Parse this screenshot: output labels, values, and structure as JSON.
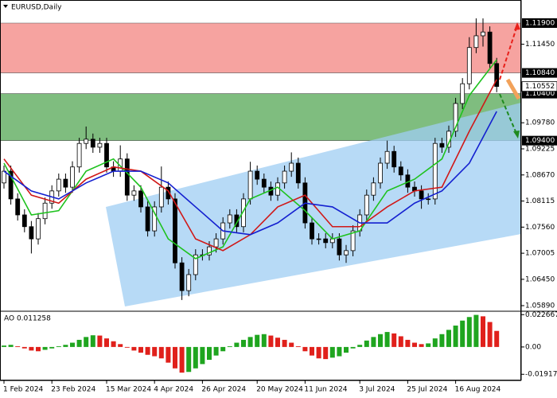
{
  "chart_data": {
    "type": "candlestick",
    "title": "EURUSD,Daily",
    "categories": [
      "1 Feb 2024",
      null,
      null,
      null,
      null,
      null,
      null,
      "23 Feb 2024",
      null,
      null,
      null,
      null,
      null,
      null,
      null,
      "15 Mar 2024",
      null,
      null,
      null,
      null,
      null,
      null,
      "4 Apr 2024",
      null,
      null,
      null,
      null,
      null,
      null,
      "26 Apr 2024",
      null,
      null,
      null,
      null,
      null,
      null,
      null,
      "20 May 2024",
      null,
      null,
      null,
      null,
      null,
      null,
      "11 Jun 2024",
      null,
      null,
      null,
      null,
      null,
      null,
      null,
      "3 Jul 2024",
      null,
      null,
      null,
      null,
      null,
      null,
      "25 Jul 2024",
      null,
      null,
      null,
      null,
      null,
      null,
      "16 Aug 2024",
      null,
      null,
      null,
      null,
      null,
      null
    ],
    "open": [
      1.085,
      1.0875,
      1.0816,
      1.0782,
      1.0757,
      1.0731,
      1.0774,
      1.0807,
      1.0833,
      1.0858,
      1.0841,
      1.0884,
      1.0934,
      1.0943,
      1.0926,
      1.0934,
      1.0884,
      1.0875,
      1.0901,
      1.0824,
      1.0833,
      1.0799,
      1.0748,
      1.0799,
      1.0841,
      1.0816,
      1.068,
      1.0621,
      1.0655,
      1.0697,
      1.0697,
      1.0714,
      1.0731,
      1.0765,
      1.0782,
      1.0757,
      1.0816,
      1.0875,
      1.0858,
      1.0841,
      1.0824,
      1.085,
      1.0875,
      1.0892,
      1.085,
      1.0765,
      1.0731,
      1.0731,
      1.0723,
      1.0731,
      1.0697,
      1.0706,
      1.0748,
      1.0782,
      1.0824,
      1.085,
      1.0892,
      1.0917,
      1.0884,
      1.0867,
      1.0841,
      1.0833,
      1.0816,
      1.0816,
      1.0934,
      1.0926,
      1.096,
      1.1019,
      1.1061,
      1.1138,
      1.1163,
      1.1171,
      1.1104
    ],
    "high": [
      1.0887,
      1.0887,
      1.0828,
      1.0794,
      1.0769,
      1.0786,
      1.0819,
      1.0845,
      1.087,
      1.087,
      1.0896,
      1.0946,
      1.097,
      1.0955,
      1.0946,
      1.0946,
      1.0896,
      1.093,
      1.0913,
      1.0845,
      1.0845,
      1.0811,
      1.0811,
      1.0885,
      1.0853,
      1.0828,
      1.0692,
      1.0667,
      1.0709,
      1.0709,
      1.0726,
      1.0743,
      1.0777,
      1.0794,
      1.0794,
      1.0828,
      1.0895,
      1.0887,
      1.087,
      1.0853,
      1.0862,
      1.0887,
      1.0915,
      1.0904,
      1.0862,
      1.0777,
      1.0743,
      1.0743,
      1.0743,
      1.0743,
      1.0718,
      1.076,
      1.0794,
      1.0836,
      1.0862,
      1.0904,
      1.094,
      1.0929,
      1.0896,
      1.0879,
      1.0853,
      1.0845,
      1.0828,
      1.0946,
      1.0946,
      1.0972,
      1.1031,
      1.1073,
      1.116,
      1.12,
      1.12,
      1.1183,
      1.1116
    ],
    "low": [
      1.0838,
      1.0804,
      1.077,
      1.0745,
      1.07,
      1.0719,
      1.0762,
      1.0795,
      1.0821,
      1.0829,
      1.0829,
      1.0872,
      1.0922,
      1.0914,
      1.0914,
      1.0872,
      1.0863,
      1.0863,
      1.0812,
      1.0812,
      1.0787,
      1.0736,
      1.0736,
      1.0787,
      1.0804,
      1.0668,
      1.0601,
      1.0609,
      1.0643,
      1.0685,
      1.0685,
      1.0702,
      1.0719,
      1.0753,
      1.0745,
      1.0745,
      1.0804,
      1.0846,
      1.0829,
      1.0812,
      1.0812,
      1.0838,
      1.0863,
      1.0838,
      1.0753,
      1.0719,
      1.0719,
      1.0711,
      1.0711,
      1.0685,
      1.068,
      1.0694,
      1.0736,
      1.077,
      1.0812,
      1.0838,
      1.088,
      1.0872,
      1.0855,
      1.0829,
      1.0821,
      1.0795,
      1.0804,
      1.0804,
      1.0914,
      1.0914,
      1.0948,
      1.1007,
      1.1049,
      1.1126,
      1.114,
      1.1092,
      1.1043
    ],
    "close": [
      1.0875,
      1.0816,
      1.0782,
      1.0757,
      1.0731,
      1.0774,
      1.0807,
      1.0833,
      1.0858,
      1.0841,
      1.0884,
      1.0934,
      1.0943,
      1.0926,
      1.0934,
      1.0884,
      1.0875,
      1.0901,
      1.0824,
      1.0833,
      1.0799,
      1.0748,
      1.0799,
      1.0841,
      1.0816,
      1.068,
      1.0621,
      1.0655,
      1.0697,
      1.0697,
      1.0714,
      1.0731,
      1.0765,
      1.0782,
      1.0757,
      1.0816,
      1.0875,
      1.0858,
      1.0841,
      1.0824,
      1.085,
      1.0875,
      1.0892,
      1.085,
      1.0765,
      1.0731,
      1.0731,
      1.0723,
      1.0731,
      1.0697,
      1.0706,
      1.0748,
      1.0782,
      1.0824,
      1.085,
      1.0892,
      1.0917,
      1.0884,
      1.0867,
      1.0841,
      1.0833,
      1.0816,
      1.0816,
      1.0934,
      1.0926,
      1.096,
      1.1019,
      1.1061,
      1.1138,
      1.1163,
      1.1171,
      1.1104,
      1.10552
    ],
    "up_color": "#ffffff",
    "down_color": "#000000",
    "ylim": [
      1.05788,
      1.12391
    ],
    "yticks": [
      {
        "value": 1.1145,
        "label": "1.11450"
      },
      {
        "value": 1.0978,
        "label": "1.09780"
      },
      1.09225,
      {
        "value": 1.0867,
        "label": "1.08670"
      },
      1.08115,
      {
        "value": 1.0756,
        "label": "1.07560"
      },
      1.07005,
      {
        "value": 1.0645,
        "label": "1.06450"
      },
      {
        "value": 1.0589,
        "label": "1.05890"
      }
    ],
    "price_levels": [
      {
        "value": 1.119,
        "label": "1.11900"
      },
      {
        "value": 1.1084,
        "label": "1.10840"
      },
      {
        "value": 1.104,
        "label": "1.10400"
      },
      {
        "value": 1.094,
        "label": "1.09400"
      }
    ],
    "current_price": 1.10552,
    "zones": [
      {
        "from": 1.1084,
        "to": 1.119,
        "color": "#f6a3a0"
      },
      {
        "from": 1.094,
        "to": 1.104,
        "color": "#7fbd7f"
      }
    ],
    "moving_averages": [
      {
        "color": "#1ec21e",
        "x": [
          0,
          4,
          8,
          12,
          16,
          20,
          24,
          28,
          32,
          36,
          40,
          44,
          48,
          52,
          56,
          60,
          64,
          68,
          72
        ],
        "values": [
          1.0892,
          1.0782,
          1.0791,
          1.0875,
          1.0901,
          1.0841,
          1.0731,
          1.0689,
          1.0714,
          1.0816,
          1.0841,
          1.0791,
          1.0731,
          1.0748,
          1.0833,
          1.0858,
          1.0901,
          1.1036,
          1.1112
        ]
      },
      {
        "color": "#d01818",
        "x": [
          0,
          4,
          8,
          12,
          16,
          20,
          24,
          28,
          32,
          36,
          40,
          44,
          48,
          52,
          56,
          60,
          64,
          68,
          72
        ],
        "values": [
          1.0901,
          1.0824,
          1.0807,
          1.0858,
          1.0884,
          1.0875,
          1.0833,
          1.0731,
          1.0706,
          1.074,
          1.0799,
          1.0824,
          1.0757,
          1.0757,
          1.0799,
          1.0833,
          1.0841,
          1.096,
          1.107
        ]
      },
      {
        "color": "#1420d0",
        "x": [
          0,
          4,
          8,
          12,
          16,
          20,
          24,
          28,
          32,
          36,
          40,
          44,
          48,
          52,
          56,
          60,
          64,
          68,
          72
        ],
        "values": [
          1.0875,
          1.0833,
          1.0816,
          1.085,
          1.0875,
          1.0875,
          1.085,
          1.0799,
          1.0748,
          1.074,
          1.0765,
          1.0807,
          1.0799,
          1.0765,
          1.0765,
          1.0807,
          1.0833,
          1.0892,
          1.1002
        ]
      }
    ],
    "indicator": {
      "type": "bar",
      "label": "AO 0.011258",
      "up_color": "#1fa51f",
      "down_color": "#e0201b",
      "ylim": [
        -0.0235,
        0.0245
      ],
      "yticks": [
        0.022667,
        {
          "value": 0,
          "label": "0.00"
        },
        -0.019172
      ],
      "values": [
        0.001,
        0.0015,
        0.0005,
        -0.001,
        -0.0025,
        -0.003,
        -0.002,
        -0.001,
        0.0005,
        0.0015,
        0.003,
        0.005,
        0.007,
        0.0082,
        0.008,
        0.006,
        0.004,
        0.002,
        -0.0005,
        -0.0025,
        -0.004,
        -0.0055,
        -0.0065,
        -0.008,
        -0.011,
        -0.015,
        -0.018,
        -0.0175,
        -0.015,
        -0.012,
        -0.009,
        -0.006,
        -0.003,
        0.0005,
        0.003,
        0.005,
        0.007,
        0.0085,
        0.009,
        0.008,
        0.0065,
        0.005,
        0.003,
        0.0005,
        -0.003,
        -0.006,
        -0.008,
        -0.0085,
        -0.0075,
        -0.0065,
        -0.004,
        -0.001,
        0.0015,
        0.0045,
        0.007,
        0.009,
        0.0105,
        0.0095,
        0.0075,
        0.005,
        0.003,
        0.002,
        0.0025,
        0.006,
        0.009,
        0.012,
        0.015,
        0.0185,
        0.021,
        0.0225,
        0.0215,
        0.0175,
        0.011258
      ]
    }
  }
}
